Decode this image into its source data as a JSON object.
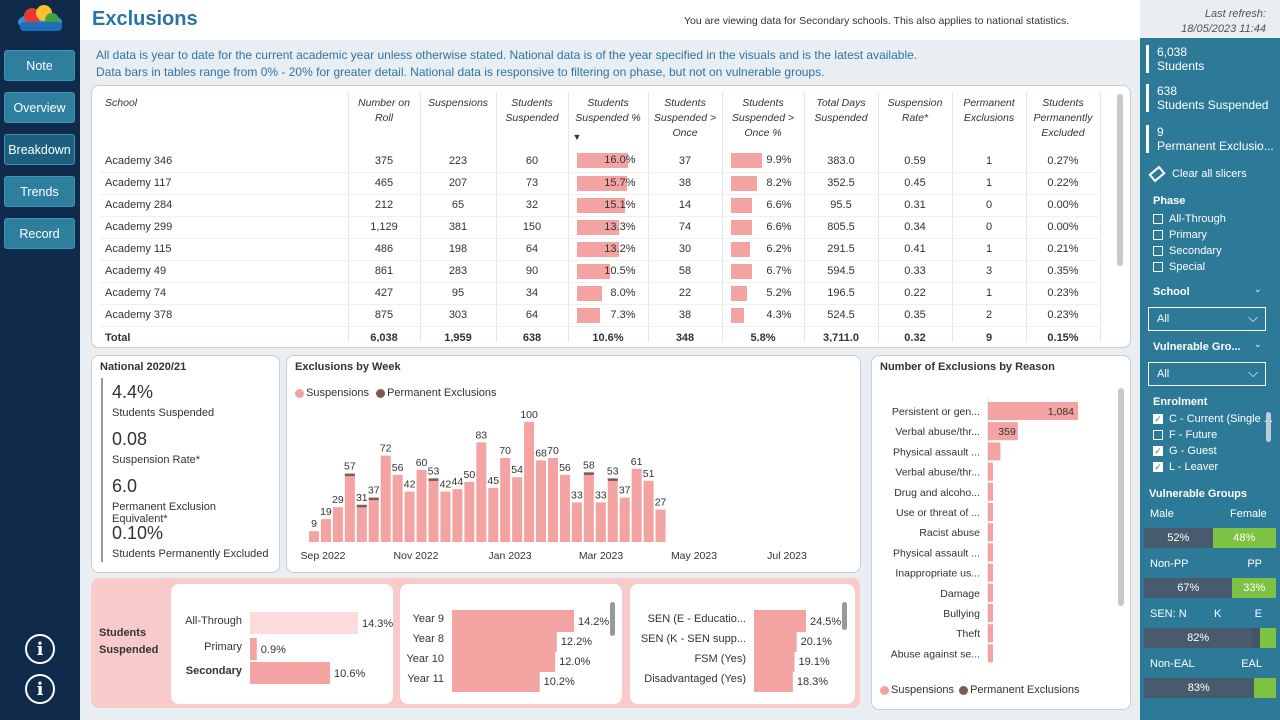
{
  "nav": {
    "buttons": [
      "Note",
      "Overview",
      "Breakdown",
      "Trends",
      "Record"
    ]
  },
  "header": {
    "title": "Exclusions",
    "view_note": "You are viewing data for Secondary schools. This also applies to national statistics.",
    "refresh_label": "Last refresh:",
    "refresh_time": "18/05/2023 11:44"
  },
  "info": {
    "line1": "All data is year to date for the current academic year unless otherwise stated. National data is of the year specified in the visuals and is the latest available.",
    "line2": "Data bars in tables range from 0% - 20% for greater detail. National data is responsive to filtering on phase, but not on vulnerable groups."
  },
  "table": {
    "columns": [
      "School",
      "Number on Roll",
      "Suspensions",
      "Students Suspended",
      "Students Suspended %",
      "Students Suspended > Once",
      "Students Suspended > Once %",
      "Total Days Suspended",
      "Suspension Rate*",
      "Permanent Exclusions",
      "Students Permanently Excluded"
    ],
    "sort_indicator": "▼",
    "rows": [
      {
        "school": "Academy 346",
        "roll": "375",
        "susp": "223",
        "stud": "60",
        "pct": "16.0%",
        "pct_v": 16.0,
        "once": "37",
        "once_pct": "9.9%",
        "once_v": 9.9,
        "days": "383.0",
        "rate": "0.59",
        "perm": "1",
        "perm_pct": "0.27%"
      },
      {
        "school": "Academy 117",
        "roll": "465",
        "susp": "207",
        "stud": "73",
        "pct": "15.7%",
        "pct_v": 15.7,
        "once": "38",
        "once_pct": "8.2%",
        "once_v": 8.2,
        "days": "352.5",
        "rate": "0.45",
        "perm": "1",
        "perm_pct": "0.22%"
      },
      {
        "school": "Academy 284",
        "roll": "212",
        "susp": "65",
        "stud": "32",
        "pct": "15.1%",
        "pct_v": 15.1,
        "once": "14",
        "once_pct": "6.6%",
        "once_v": 6.6,
        "days": "95.5",
        "rate": "0.31",
        "perm": "0",
        "perm_pct": "0.00%"
      },
      {
        "school": "Academy 299",
        "roll": "1,129",
        "susp": "381",
        "stud": "150",
        "pct": "13.3%",
        "pct_v": 13.3,
        "once": "74",
        "once_pct": "6.6%",
        "once_v": 6.6,
        "days": "805.5",
        "rate": "0.34",
        "perm": "0",
        "perm_pct": "0.00%"
      },
      {
        "school": "Academy 115",
        "roll": "486",
        "susp": "198",
        "stud": "64",
        "pct": "13.2%",
        "pct_v": 13.2,
        "once": "30",
        "once_pct": "6.2%",
        "once_v": 6.2,
        "days": "291.5",
        "rate": "0.41",
        "perm": "1",
        "perm_pct": "0.21%"
      },
      {
        "school": "Academy 49",
        "roll": "861",
        "susp": "283",
        "stud": "90",
        "pct": "10.5%",
        "pct_v": 10.5,
        "once": "58",
        "once_pct": "6.7%",
        "once_v": 6.7,
        "days": "594.5",
        "rate": "0.33",
        "perm": "3",
        "perm_pct": "0.35%"
      },
      {
        "school": "Academy 74",
        "roll": "427",
        "susp": "95",
        "stud": "34",
        "pct": "8.0%",
        "pct_v": 8.0,
        "once": "22",
        "once_pct": "5.2%",
        "once_v": 5.2,
        "days": "196.5",
        "rate": "0.22",
        "perm": "1",
        "perm_pct": "0.23%"
      },
      {
        "school": "Academy 378",
        "roll": "875",
        "susp": "303",
        "stud": "64",
        "pct": "7.3%",
        "pct_v": 7.3,
        "once": "38",
        "once_pct": "4.3%",
        "once_v": 4.3,
        "days": "524.5",
        "rate": "0.35",
        "perm": "2",
        "perm_pct": "0.23%"
      }
    ],
    "total": {
      "label": "Total",
      "roll": "6,038",
      "susp": "1,959",
      "stud": "638",
      "pct": "10.6%",
      "once": "348",
      "once_pct": "5.8%",
      "days": "3,711.0",
      "rate": "0.32",
      "perm": "9",
      "perm_pct": "0.15%"
    }
  },
  "national": {
    "title": "National 2020/21",
    "kpis": [
      {
        "value": "4.4%",
        "label": "Students Suspended"
      },
      {
        "value": "0.08",
        "label": "Suspension Rate*"
      },
      {
        "value": "6.0",
        "label": "Permanent Exclusion Equivalent*"
      },
      {
        "value": "0.10%",
        "label": "Students Permanently Excluded"
      }
    ]
  },
  "weekly": {
    "title": "Exclusions by Week",
    "legend": [
      "Suspensions",
      "Permanent Exclusions"
    ],
    "xticks": [
      "Sep 2022",
      "Nov 2022",
      "Jan 2023",
      "Mar 2023",
      "May 2023",
      "Jul 2023"
    ]
  },
  "reasons": {
    "title": "Number of Exclusions by Reason",
    "legend": [
      "Suspensions",
      "Permanent Exclusions"
    ]
  },
  "susp_panel": {
    "title": "Students Suspended"
  },
  "right": {
    "kpis": [
      {
        "value": "6,038",
        "label": "Students"
      },
      {
        "value": "638",
        "label": "Students Suspended"
      },
      {
        "value": "9",
        "label": "Permanent Exclusio..."
      }
    ],
    "clear": "Clear all slicers",
    "phase": {
      "title": "Phase",
      "items": [
        "All-Through",
        "Primary",
        "Secondary",
        "Special"
      ]
    },
    "school": {
      "title": "School",
      "value": "All"
    },
    "vuln": {
      "title": "Vulnerable Gro...",
      "value": "All"
    },
    "enrol": {
      "title": "Enrolment",
      "items": [
        {
          "label": "C - Current (Single ...",
          "on": true
        },
        {
          "label": "F - Future",
          "on": false
        },
        {
          "label": "G - Guest",
          "on": true
        },
        {
          "label": "L - Leaver",
          "on": true
        }
      ]
    },
    "vg": {
      "title": "Vulnerable Groups",
      "groups": [
        {
          "left": "Male",
          "right": "Female",
          "mid": "",
          "a": "52%",
          "b": "48%",
          "a_v": 52,
          "b_v": 48
        },
        {
          "left": "Non-PP",
          "right": "PP",
          "mid": "",
          "a": "67%",
          "b": "33%",
          "a_v": 67,
          "b_v": 33
        },
        {
          "left": "SEN: N",
          "right": "E",
          "mid": "K",
          "a": "82%",
          "b": "",
          "a_v": 82,
          "b_v": 12
        },
        {
          "left": "Non-EAL",
          "right": "EAL",
          "mid": "",
          "a": "83%",
          "b": "",
          "a_v": 83,
          "b_v": 17
        }
      ]
    }
  },
  "chart_data": [
    {
      "type": "bar",
      "title": "Exclusions by Week",
      "legend": [
        "Suspensions",
        "Permanent Exclusions"
      ],
      "values": [
        9,
        19,
        29,
        57,
        31,
        37,
        72,
        56,
        42,
        60,
        53,
        42,
        44,
        50,
        83,
        45,
        70,
        54,
        100,
        68,
        70,
        56,
        33,
        58,
        33,
        53,
        37,
        61,
        51,
        27
      ],
      "labels": [
        "9",
        "19",
        "29",
        "57",
        "31",
        "37",
        "72",
        "56",
        "42",
        "60",
        "53",
        "42",
        "44",
        "50",
        "83",
        "45",
        "70",
        "54",
        "100",
        "68",
        "70",
        "56",
        "33",
        "58",
        "33",
        "53",
        "37",
        "61",
        "51",
        "27"
      ],
      "perm": [
        0,
        0,
        0,
        1,
        1,
        1,
        0,
        0,
        0,
        0,
        1,
        0,
        0,
        0,
        0,
        0,
        0,
        0,
        0,
        0,
        0,
        0,
        0,
        1,
        0,
        1,
        0,
        0,
        0,
        0
      ],
      "xticks": [
        "Sep 2022",
        "Nov 2022",
        "Jan 2023",
        "Mar 2023",
        "May 2023",
        "Jul 2023"
      ],
      "ylim": [
        0,
        100
      ]
    },
    {
      "type": "bar",
      "orientation": "horizontal",
      "title": "Number of Exclusions by Reason",
      "categories": [
        "Persistent or gen...",
        "Verbal abuse/thr...",
        "Physical assault ...",
        "Verbal abuse/thr...",
        "Drug and alcoho...",
        "Use or threat of ...",
        "Racist abuse",
        "Physical assault ...",
        "Inappropriate us...",
        "Damage",
        "Bullying",
        "Theft",
        "Abuse against se..."
      ],
      "values": [
        1084,
        359,
        150,
        60,
        40,
        30,
        25,
        20,
        15,
        12,
        10,
        8,
        6
      ],
      "data_labels": [
        "1,084",
        "359",
        "",
        "",
        "",
        "",
        "",
        "",
        "",
        "",
        "",
        "",
        ""
      ]
    },
    {
      "type": "bar",
      "orientation": "horizontal",
      "title": "Students Suspended by Phase",
      "categories": [
        "All-Through",
        "Primary",
        "Secondary"
      ],
      "values": [
        14.3,
        0.9,
        10.6
      ],
      "labels": [
        "14.3%",
        "0.9%",
        "10.6%"
      ]
    },
    {
      "type": "bar",
      "orientation": "horizontal",
      "title": "Students Suspended by Year",
      "categories": [
        "Year 9",
        "Year 8",
        "Year 10",
        "Year 11"
      ],
      "values": [
        14.2,
        12.2,
        12.0,
        10.2
      ],
      "labels": [
        "14.2%",
        "12.2%",
        "12.0%",
        "10.2%"
      ]
    },
    {
      "type": "bar",
      "orientation": "horizontal",
      "title": "Students Suspended by Group",
      "categories": [
        "SEN (E - Educatio...",
        "SEN (K - SEN supp...",
        "FSM (Yes)",
        "Disadvantaged (Yes)"
      ],
      "values": [
        24.5,
        20.1,
        19.1,
        18.3
      ],
      "labels": [
        "24.5%",
        "20.1%",
        "19.1%",
        "18.3%"
      ]
    }
  ]
}
